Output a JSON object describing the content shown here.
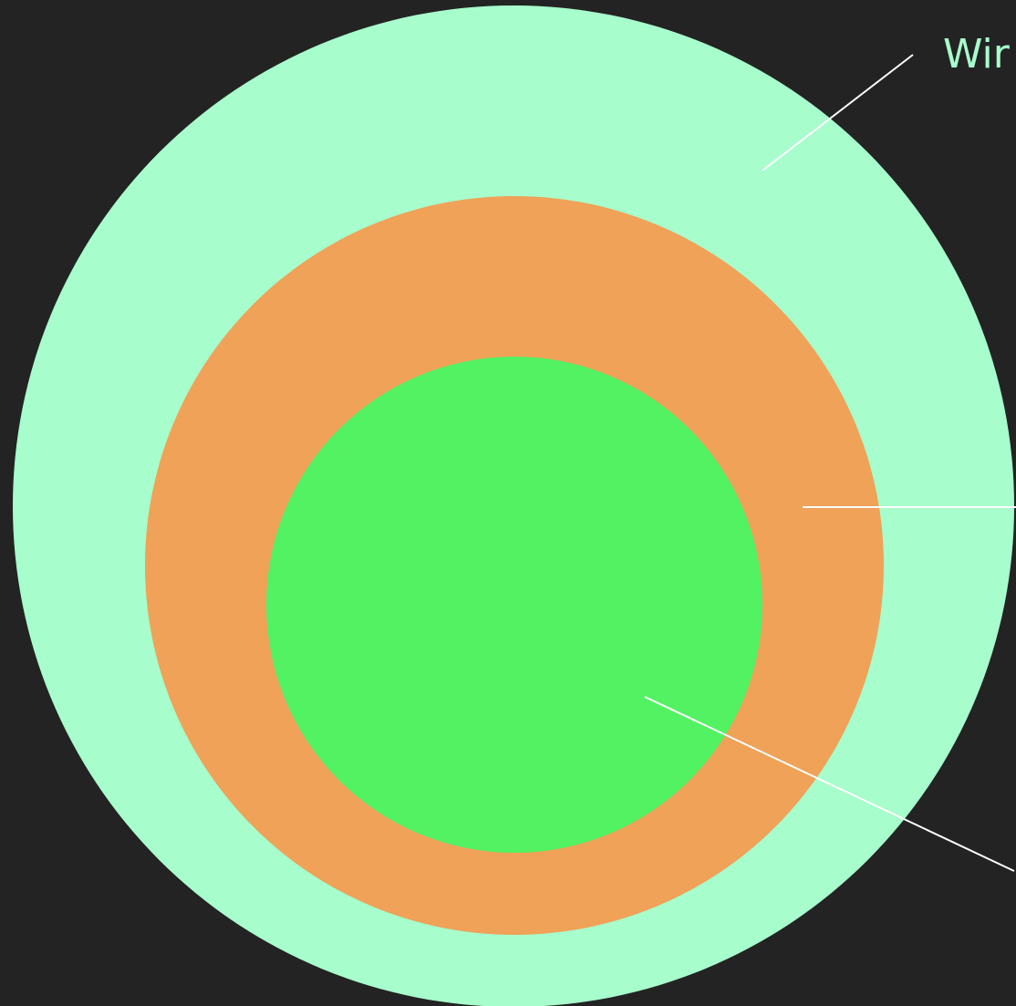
{
  "background_color": "#232323",
  "leader_color": "#ffffff",
  "circles": [
    {
      "id": "outer-circle",
      "color": "#a7fdcc"
    },
    {
      "id": "middle-circle",
      "color": "#efa258"
    },
    {
      "id": "inner-circle",
      "color": "#52f263"
    }
  ],
  "labels": [
    {
      "id": "outer-label",
      "text": "Wir",
      "color": "#a7fdcc"
    }
  ]
}
